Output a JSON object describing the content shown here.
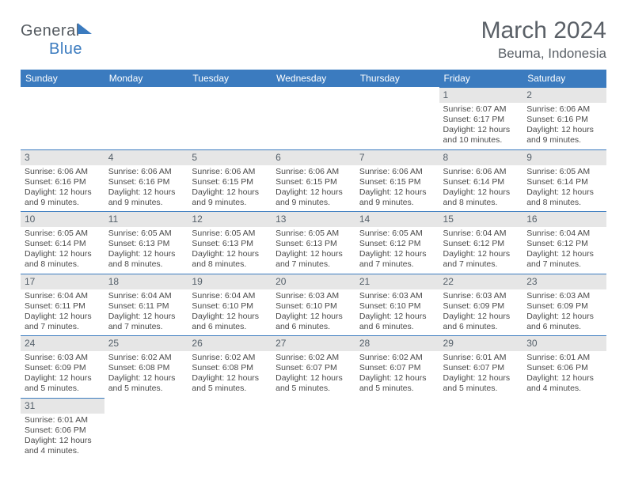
{
  "brand": {
    "part1": "General",
    "part2": "Blue"
  },
  "title": "March 2024",
  "location": "Beuma, Indonesia",
  "colors": {
    "header_bg": "#3b7bbf",
    "header_text": "#ffffff",
    "daynum_bg": "#e6e6e6",
    "daynum_border": "#3b7bbf",
    "body_text": "#4a4a4a",
    "title_text": "#5a6067"
  },
  "weekdays": [
    "Sunday",
    "Monday",
    "Tuesday",
    "Wednesday",
    "Thursday",
    "Friday",
    "Saturday"
  ],
  "calendar": {
    "first_weekday_index": 5,
    "days": [
      {
        "n": 1,
        "sunrise": "6:07 AM",
        "sunset": "6:17 PM",
        "daylight": "12 hours and 10 minutes."
      },
      {
        "n": 2,
        "sunrise": "6:06 AM",
        "sunset": "6:16 PM",
        "daylight": "12 hours and 9 minutes."
      },
      {
        "n": 3,
        "sunrise": "6:06 AM",
        "sunset": "6:16 PM",
        "daylight": "12 hours and 9 minutes."
      },
      {
        "n": 4,
        "sunrise": "6:06 AM",
        "sunset": "6:16 PM",
        "daylight": "12 hours and 9 minutes."
      },
      {
        "n": 5,
        "sunrise": "6:06 AM",
        "sunset": "6:15 PM",
        "daylight": "12 hours and 9 minutes."
      },
      {
        "n": 6,
        "sunrise": "6:06 AM",
        "sunset": "6:15 PM",
        "daylight": "12 hours and 9 minutes."
      },
      {
        "n": 7,
        "sunrise": "6:06 AM",
        "sunset": "6:15 PM",
        "daylight": "12 hours and 9 minutes."
      },
      {
        "n": 8,
        "sunrise": "6:06 AM",
        "sunset": "6:14 PM",
        "daylight": "12 hours and 8 minutes."
      },
      {
        "n": 9,
        "sunrise": "6:05 AM",
        "sunset": "6:14 PM",
        "daylight": "12 hours and 8 minutes."
      },
      {
        "n": 10,
        "sunrise": "6:05 AM",
        "sunset": "6:14 PM",
        "daylight": "12 hours and 8 minutes."
      },
      {
        "n": 11,
        "sunrise": "6:05 AM",
        "sunset": "6:13 PM",
        "daylight": "12 hours and 8 minutes."
      },
      {
        "n": 12,
        "sunrise": "6:05 AM",
        "sunset": "6:13 PM",
        "daylight": "12 hours and 8 minutes."
      },
      {
        "n": 13,
        "sunrise": "6:05 AM",
        "sunset": "6:13 PM",
        "daylight": "12 hours and 7 minutes."
      },
      {
        "n": 14,
        "sunrise": "6:05 AM",
        "sunset": "6:12 PM",
        "daylight": "12 hours and 7 minutes."
      },
      {
        "n": 15,
        "sunrise": "6:04 AM",
        "sunset": "6:12 PM",
        "daylight": "12 hours and 7 minutes."
      },
      {
        "n": 16,
        "sunrise": "6:04 AM",
        "sunset": "6:12 PM",
        "daylight": "12 hours and 7 minutes."
      },
      {
        "n": 17,
        "sunrise": "6:04 AM",
        "sunset": "6:11 PM",
        "daylight": "12 hours and 7 minutes."
      },
      {
        "n": 18,
        "sunrise": "6:04 AM",
        "sunset": "6:11 PM",
        "daylight": "12 hours and 7 minutes."
      },
      {
        "n": 19,
        "sunrise": "6:04 AM",
        "sunset": "6:10 PM",
        "daylight": "12 hours and 6 minutes."
      },
      {
        "n": 20,
        "sunrise": "6:03 AM",
        "sunset": "6:10 PM",
        "daylight": "12 hours and 6 minutes."
      },
      {
        "n": 21,
        "sunrise": "6:03 AM",
        "sunset": "6:10 PM",
        "daylight": "12 hours and 6 minutes."
      },
      {
        "n": 22,
        "sunrise": "6:03 AM",
        "sunset": "6:09 PM",
        "daylight": "12 hours and 6 minutes."
      },
      {
        "n": 23,
        "sunrise": "6:03 AM",
        "sunset": "6:09 PM",
        "daylight": "12 hours and 6 minutes."
      },
      {
        "n": 24,
        "sunrise": "6:03 AM",
        "sunset": "6:09 PM",
        "daylight": "12 hours and 5 minutes."
      },
      {
        "n": 25,
        "sunrise": "6:02 AM",
        "sunset": "6:08 PM",
        "daylight": "12 hours and 5 minutes."
      },
      {
        "n": 26,
        "sunrise": "6:02 AM",
        "sunset": "6:08 PM",
        "daylight": "12 hours and 5 minutes."
      },
      {
        "n": 27,
        "sunrise": "6:02 AM",
        "sunset": "6:07 PM",
        "daylight": "12 hours and 5 minutes."
      },
      {
        "n": 28,
        "sunrise": "6:02 AM",
        "sunset": "6:07 PM",
        "daylight": "12 hours and 5 minutes."
      },
      {
        "n": 29,
        "sunrise": "6:01 AM",
        "sunset": "6:07 PM",
        "daylight": "12 hours and 5 minutes."
      },
      {
        "n": 30,
        "sunrise": "6:01 AM",
        "sunset": "6:06 PM",
        "daylight": "12 hours and 4 minutes."
      },
      {
        "n": 31,
        "sunrise": "6:01 AM",
        "sunset": "6:06 PM",
        "daylight": "12 hours and 4 minutes."
      }
    ]
  },
  "labels": {
    "sunrise": "Sunrise:",
    "sunset": "Sunset:",
    "daylight": "Daylight:"
  }
}
